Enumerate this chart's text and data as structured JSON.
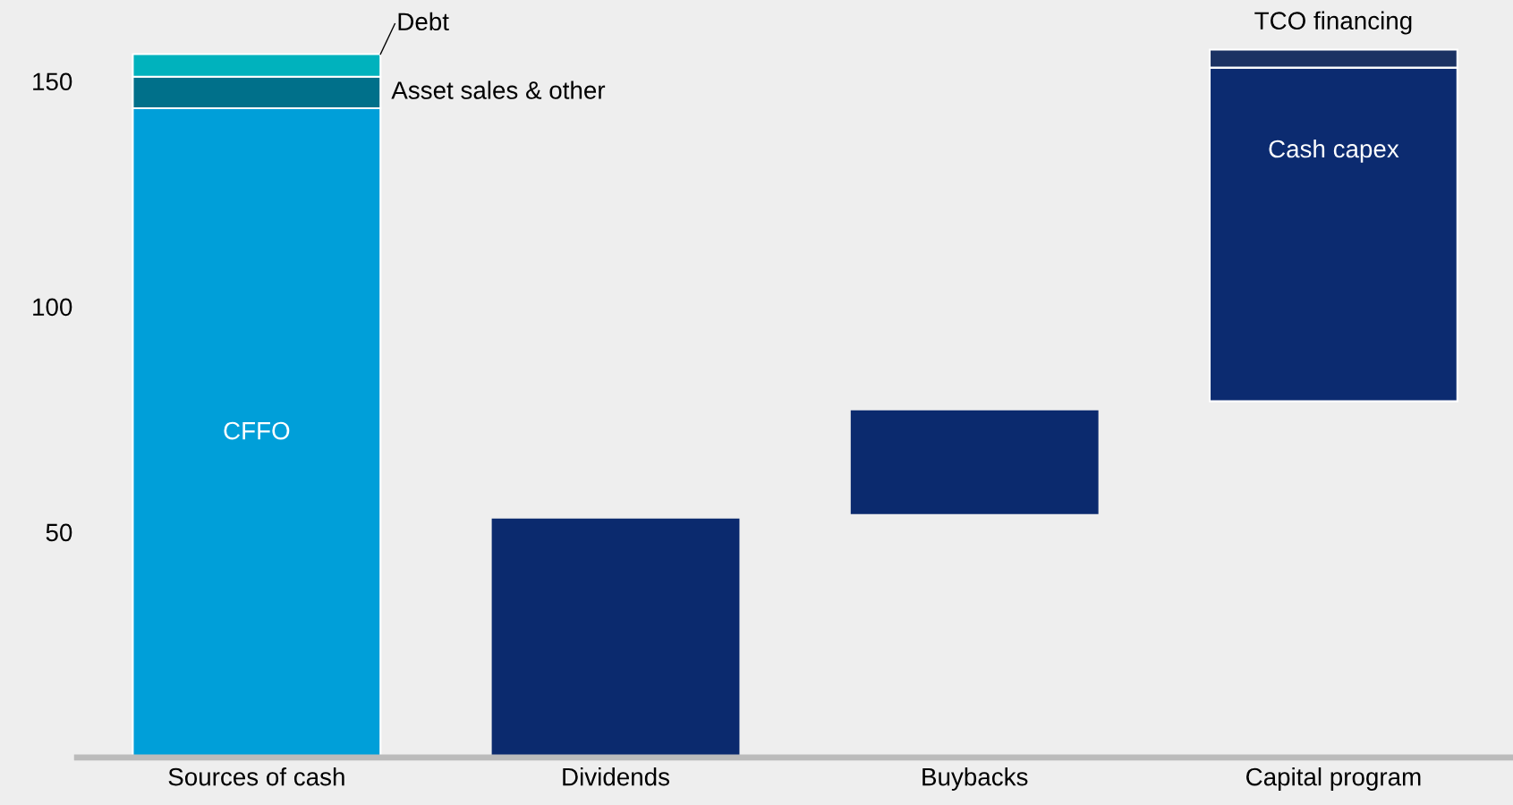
{
  "chart_data": {
    "type": "bar",
    "categories": [
      "Sources of cash",
      "Dividends",
      "Buybacks",
      "Capital program"
    ],
    "series": [
      {
        "name": "CFFO",
        "color": "#009fd9",
        "values": [
          144,
          null,
          null,
          null
        ],
        "base": [
          0,
          null,
          null,
          null
        ]
      },
      {
        "name": "Asset sales & other",
        "color": "#00708a",
        "values": [
          7,
          null,
          null,
          null
        ],
        "base": [
          144,
          null,
          null,
          null
        ]
      },
      {
        "name": "Debt",
        "color": "#00b2bd",
        "values": [
          5,
          null,
          null,
          null
        ],
        "base": [
          151,
          null,
          null,
          null
        ]
      },
      {
        "color": "#0b2a6e",
        "values": [
          null,
          53,
          23,
          null
        ],
        "base": [
          null,
          0,
          54,
          null
        ]
      },
      {
        "name": "Cash capex",
        "color": "#0c2b70",
        "values": [
          null,
          null,
          null,
          74
        ],
        "base": [
          null,
          null,
          null,
          79
        ]
      },
      {
        "name": "TCO financing",
        "color": "#1b3263",
        "values": [
          null,
          null,
          null,
          4
        ],
        "base": [
          null,
          null,
          null,
          153
        ]
      }
    ],
    "ylim": [
      0,
      168
    ],
    "yticks": [
      50,
      100,
      150
    ],
    "grid": false
  }
}
